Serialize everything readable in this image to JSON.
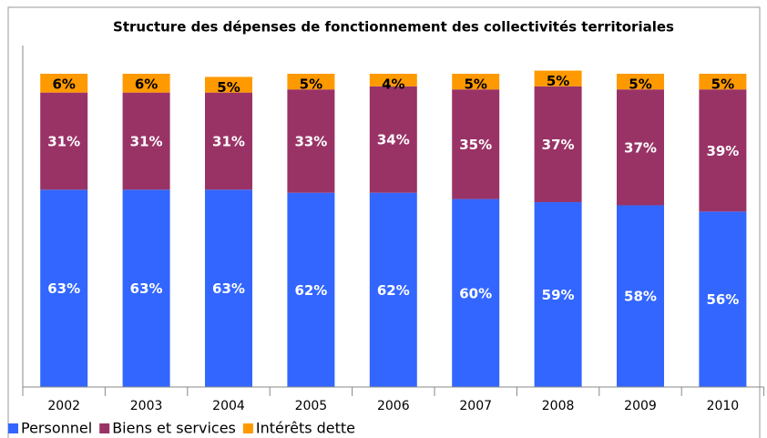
{
  "chart_data": {
    "type": "stacked_bar",
    "title": "Structure des dépenses de fonctionnement des collectivités territoriales",
    "categories": [
      "2002",
      "2003",
      "2004",
      "2005",
      "2006",
      "2007",
      "2008",
      "2009",
      "2010"
    ],
    "series": [
      {
        "name": "Personnel",
        "color": "#3366ff",
        "values": [
          63,
          63,
          63,
          62,
          62,
          60,
          59,
          58,
          56
        ],
        "value_labels": [
          "63%",
          "63%",
          "63%",
          "62%",
          "62%",
          "60%",
          "59%",
          "58%",
          "56%"
        ]
      },
      {
        "name": "Biens et services",
        "color": "#993366",
        "values": [
          31,
          31,
          31,
          33,
          34,
          35,
          37,
          37,
          39
        ],
        "value_labels": [
          "31%",
          "31%",
          "31%",
          "33%",
          "34%",
          "35%",
          "37%",
          "37%",
          "39%"
        ]
      },
      {
        "name": "Intérêts dette",
        "color": "#ff9900",
        "values": [
          6,
          6,
          5,
          5,
          4,
          5,
          5,
          5,
          5
        ],
        "value_labels": [
          "6%",
          "6%",
          "5%",
          "5%",
          "4%",
          "5%",
          "5%",
          "5%",
          "5%"
        ]
      }
    ],
    "ylim": [
      0,
      100
    ]
  }
}
